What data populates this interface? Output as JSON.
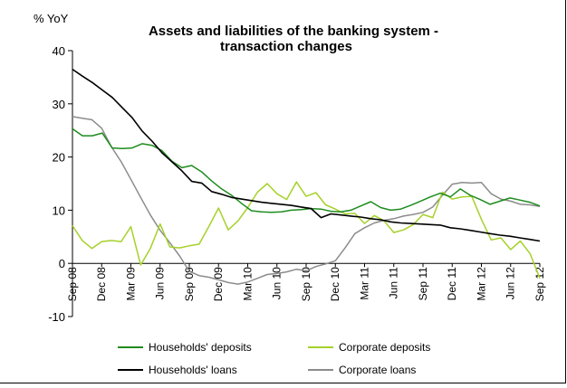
{
  "chart_data": {
    "type": "line",
    "title_lines": [
      "Assets and liabilities of the banking system -",
      "transaction changes"
    ],
    "unit_label": "% YoY",
    "ylim": [
      -10,
      40
    ],
    "yticks": [
      "40",
      "30",
      "20",
      "10",
      "0",
      "-10"
    ],
    "x_tick_labels": [
      "Sep 08",
      "Dec 08",
      "Mar 09",
      "Jun 09",
      "Sep 09",
      "Dec 09",
      "Mar 10",
      "Jun 10",
      "Sep 10",
      "Dec 10",
      "Mar 11",
      "Jun 11",
      "Sep 11",
      "Dec 11",
      "Mar 12",
      "Jun 12",
      "Sep 12"
    ],
    "legend_position": "bottom",
    "series": [
      {
        "name": "Households' deposits",
        "color": "#1e8c1e",
        "values": [
          25.3,
          24,
          24,
          24.5,
          21.7,
          21.6,
          21.7,
          22.5,
          22.2,
          21.2,
          19.2,
          18,
          18.4,
          17.2,
          15.5,
          14,
          12.8,
          11.3,
          9.9,
          9.7,
          9.6,
          9.7,
          10,
          10.1,
          10.3,
          10.2,
          9.8,
          9.7,
          10,
          10.8,
          11.6,
          10.5,
          10,
          10.2,
          10.9,
          11.7,
          12.5,
          13.2,
          12.5,
          14,
          12.8,
          12,
          11.1,
          11.7,
          12.3,
          11.9,
          11.5,
          10.8
        ]
      },
      {
        "name": "Corporate deposits",
        "color": "#a6d12a",
        "values": [
          7.1,
          4.3,
          2.8,
          4.1,
          4.3,
          4.1,
          6.9,
          -0.3,
          2.8,
          7.4,
          3.1,
          2.9,
          3.3,
          3.6,
          6.9,
          10.4,
          6.3,
          8,
          10.5,
          13.4,
          15,
          13.1,
          12,
          15.3,
          12.6,
          13.3,
          11,
          10.2,
          9.3,
          9.4,
          7.5,
          9,
          8,
          5.8,
          6.3,
          7.3,
          9.2,
          8.6,
          13.4,
          12.1,
          12.5,
          12.6,
          8.3,
          4.4,
          4.8,
          2.6,
          4.2,
          1.8,
          -2.8
        ]
      },
      {
        "name": "Households' loans",
        "color": "#000000",
        "values": [
          36.5,
          35.2,
          34,
          32.6,
          31.2,
          29.3,
          27.4,
          24.9,
          23,
          20.8,
          19.1,
          17.4,
          15.4,
          15.1,
          13.5,
          13,
          12.4,
          12.1,
          11.8,
          11.5,
          11.3,
          11.1,
          10.9,
          10.6,
          10.3,
          8.6,
          9.3,
          9.1,
          8.9,
          8.7,
          8.4,
          8.2,
          7.8,
          7.6,
          7.5,
          7.4,
          7.3,
          7.2,
          6.7,
          6.5,
          6.2,
          5.9,
          5.6,
          5.3,
          5.1,
          4.8,
          4.5,
          4.2
        ]
      },
      {
        "name": "Corporate loans",
        "color": "#8c8c8c",
        "values": [
          27.6,
          27.3,
          27,
          25.4,
          21.9,
          19.1,
          15.8,
          12.4,
          9.1,
          6.2,
          3.9,
          1.4,
          -1.5,
          -2.3,
          -2.6,
          -3.1,
          -3.6,
          -3.9,
          -3.5,
          -2.8,
          -2.1,
          -1.9,
          -1.6,
          -1.1,
          -1.4,
          -0.6,
          -0.1,
          0.5,
          2.9,
          5.6,
          6.7,
          7.6,
          8.1,
          8.4,
          8.9,
          9.2,
          9.6,
          10.6,
          12.8,
          14.9,
          15.2,
          15.1,
          15.2,
          13.1,
          12.1,
          11.7,
          11.1,
          11,
          10.7
        ]
      }
    ]
  }
}
